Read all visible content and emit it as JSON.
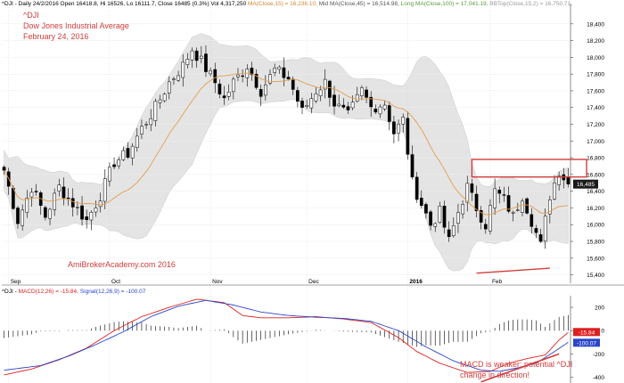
{
  "header": {
    "title": "^DJI - Daily 24/2/2016 Open 16418.8, Hi 16526, Lo 16111.7, Close 16485 (0.3%) Vol 4,317,250",
    "ma15": "MA(Close,15) = 16,236.10,",
    "ma45": "Mid MA(Close,45) = 16,514.98,",
    "ma100": "Long MA(Close,100) = 17,041.19,",
    "bb": "BBTop(Close,15,2) = 16,750.71,"
  },
  "macd_header": {
    "symbol": "^DJI -",
    "macd": "MACD(12,26) = -15.84,",
    "signal": "Signal(12,26,9) = -100.07"
  },
  "annotations": {
    "line1": "^DJI",
    "line2": "Dow Jones Industrial Average",
    "line3": "February 24, 2016",
    "watermark": "AmiBrokerAcademy.com   2016",
    "macd_note1": "MACD is weaker; potential ^DJI",
    "macd_note2": "change in direction!"
  },
  "colors": {
    "candle": "#000000",
    "ma15": "#e0a050",
    "bands": "#e4e4e4",
    "macd": "#dd2020",
    "signal": "#2a46c8",
    "annotation": "#d23c3c",
    "axis": "#444444"
  },
  "chart_data": [
    {
      "type": "candlestick",
      "ylim": [
        15300,
        18600
      ],
      "yticks": [
        15400,
        15600,
        15800,
        16000,
        16200,
        16400,
        16600,
        16800,
        17000,
        17200,
        17400,
        17600,
        17800,
        18000,
        18200,
        18400
      ],
      "month_labels": [
        {
          "label": "Sep",
          "bar": 1
        },
        {
          "label": "Oct",
          "bar": 23
        },
        {
          "label": "Nov",
          "bar": 45
        },
        {
          "label": "Dec",
          "bar": 66
        },
        {
          "label": "2016",
          "bar": 88
        },
        {
          "label": "Feb",
          "bar": 106
        }
      ],
      "last_price": "16,485",
      "bars": 124,
      "anchors": [
        [
          0,
          16650
        ],
        [
          3,
          16050
        ],
        [
          6,
          16450
        ],
        [
          9,
          16100
        ],
        [
          12,
          16450
        ],
        [
          15,
          16250
        ],
        [
          18,
          16050
        ],
        [
          21,
          16350
        ],
        [
          24,
          16750
        ],
        [
          27,
          16850
        ],
        [
          30,
          17150
        ],
        [
          33,
          17400
        ],
        [
          36,
          17700
        ],
        [
          39,
          17900
        ],
        [
          41,
          18100
        ],
        [
          43,
          17950
        ],
        [
          46,
          17700
        ],
        [
          48,
          17500
        ],
        [
          50,
          17700
        ],
        [
          53,
          17900
        ],
        [
          56,
          17600
        ],
        [
          59,
          17850
        ],
        [
          62,
          17750
        ],
        [
          65,
          17350
        ],
        [
          68,
          17600
        ],
        [
          70,
          17700
        ],
        [
          72,
          17450
        ],
        [
          75,
          17300
        ],
        [
          78,
          17600
        ],
        [
          80,
          17400
        ],
        [
          83,
          17450
        ],
        [
          85,
          17100
        ],
        [
          87,
          17250
        ],
        [
          89,
          16500
        ],
        [
          91,
          16250
        ],
        [
          93,
          16000
        ],
        [
          95,
          16150
        ],
        [
          97,
          15800
        ],
        [
          99,
          16150
        ],
        [
          101,
          16450
        ],
        [
          103,
          16200
        ],
        [
          105,
          16000
        ],
        [
          107,
          16400
        ],
        [
          109,
          16300
        ],
        [
          111,
          16100
        ],
        [
          113,
          16350
        ],
        [
          115,
          16050
        ],
        [
          117,
          15750
        ],
        [
          119,
          16350
        ],
        [
          121,
          16650
        ],
        [
          123,
          16485
        ]
      ],
      "highlight_box": {
        "price_low": 16570,
        "price_high": 16780,
        "bar_start": 102,
        "bar_end": 127
      },
      "low_line": {
        "bar_start": 103,
        "price_start": 15420,
        "bar_end": 119,
        "price_end": 15480
      }
    },
    {
      "type": "line",
      "title": "MACD(12,26)",
      "ylim": [
        -450,
        300
      ],
      "yticks": [
        -400,
        -200,
        0,
        200
      ],
      "series": [
        {
          "name": "MACD(12,26)",
          "anchors": [
            [
              0,
              -380
            ],
            [
              6,
              -330
            ],
            [
              12,
              -250
            ],
            [
              18,
              -150
            ],
            [
              24,
              0
            ],
            [
              30,
              120
            ],
            [
              36,
              200
            ],
            [
              42,
              270
            ],
            [
              48,
              240
            ],
            [
              52,
              130
            ],
            [
              56,
              110
            ],
            [
              62,
              110
            ],
            [
              68,
              120
            ],
            [
              74,
              100
            ],
            [
              80,
              70
            ],
            [
              86,
              -60
            ],
            [
              90,
              -180
            ],
            [
              95,
              -280
            ],
            [
              101,
              -360
            ],
            [
              106,
              -350
            ],
            [
              110,
              -280
            ],
            [
              114,
              -240
            ],
            [
              118,
              -210
            ],
            [
              121,
              -80
            ],
            [
              123,
              -16
            ]
          ]
        },
        {
          "name": "Signal(12,26,9)",
          "anchors": [
            [
              0,
              -340
            ],
            [
              8,
              -300
            ],
            [
              14,
              -220
            ],
            [
              20,
              -120
            ],
            [
              26,
              -10
            ],
            [
              32,
              120
            ],
            [
              38,
              210
            ],
            [
              44,
              260
            ],
            [
              50,
              220
            ],
            [
              56,
              160
            ],
            [
              62,
              130
            ],
            [
              68,
              115
            ],
            [
              74,
              105
            ],
            [
              80,
              80
            ],
            [
              86,
              0
            ],
            [
              92,
              -140
            ],
            [
              98,
              -260
            ],
            [
              104,
              -340
            ],
            [
              108,
              -350
            ],
            [
              112,
              -320
            ],
            [
              116,
              -280
            ],
            [
              120,
              -180
            ],
            [
              123,
              -100
            ]
          ]
        }
      ],
      "macd_value": "-15.84",
      "signal_value": "-100.07",
      "trend_line": {
        "bar_start": 104,
        "value_start": -440,
        "bar_end": 121,
        "value_end": -200
      }
    }
  ]
}
